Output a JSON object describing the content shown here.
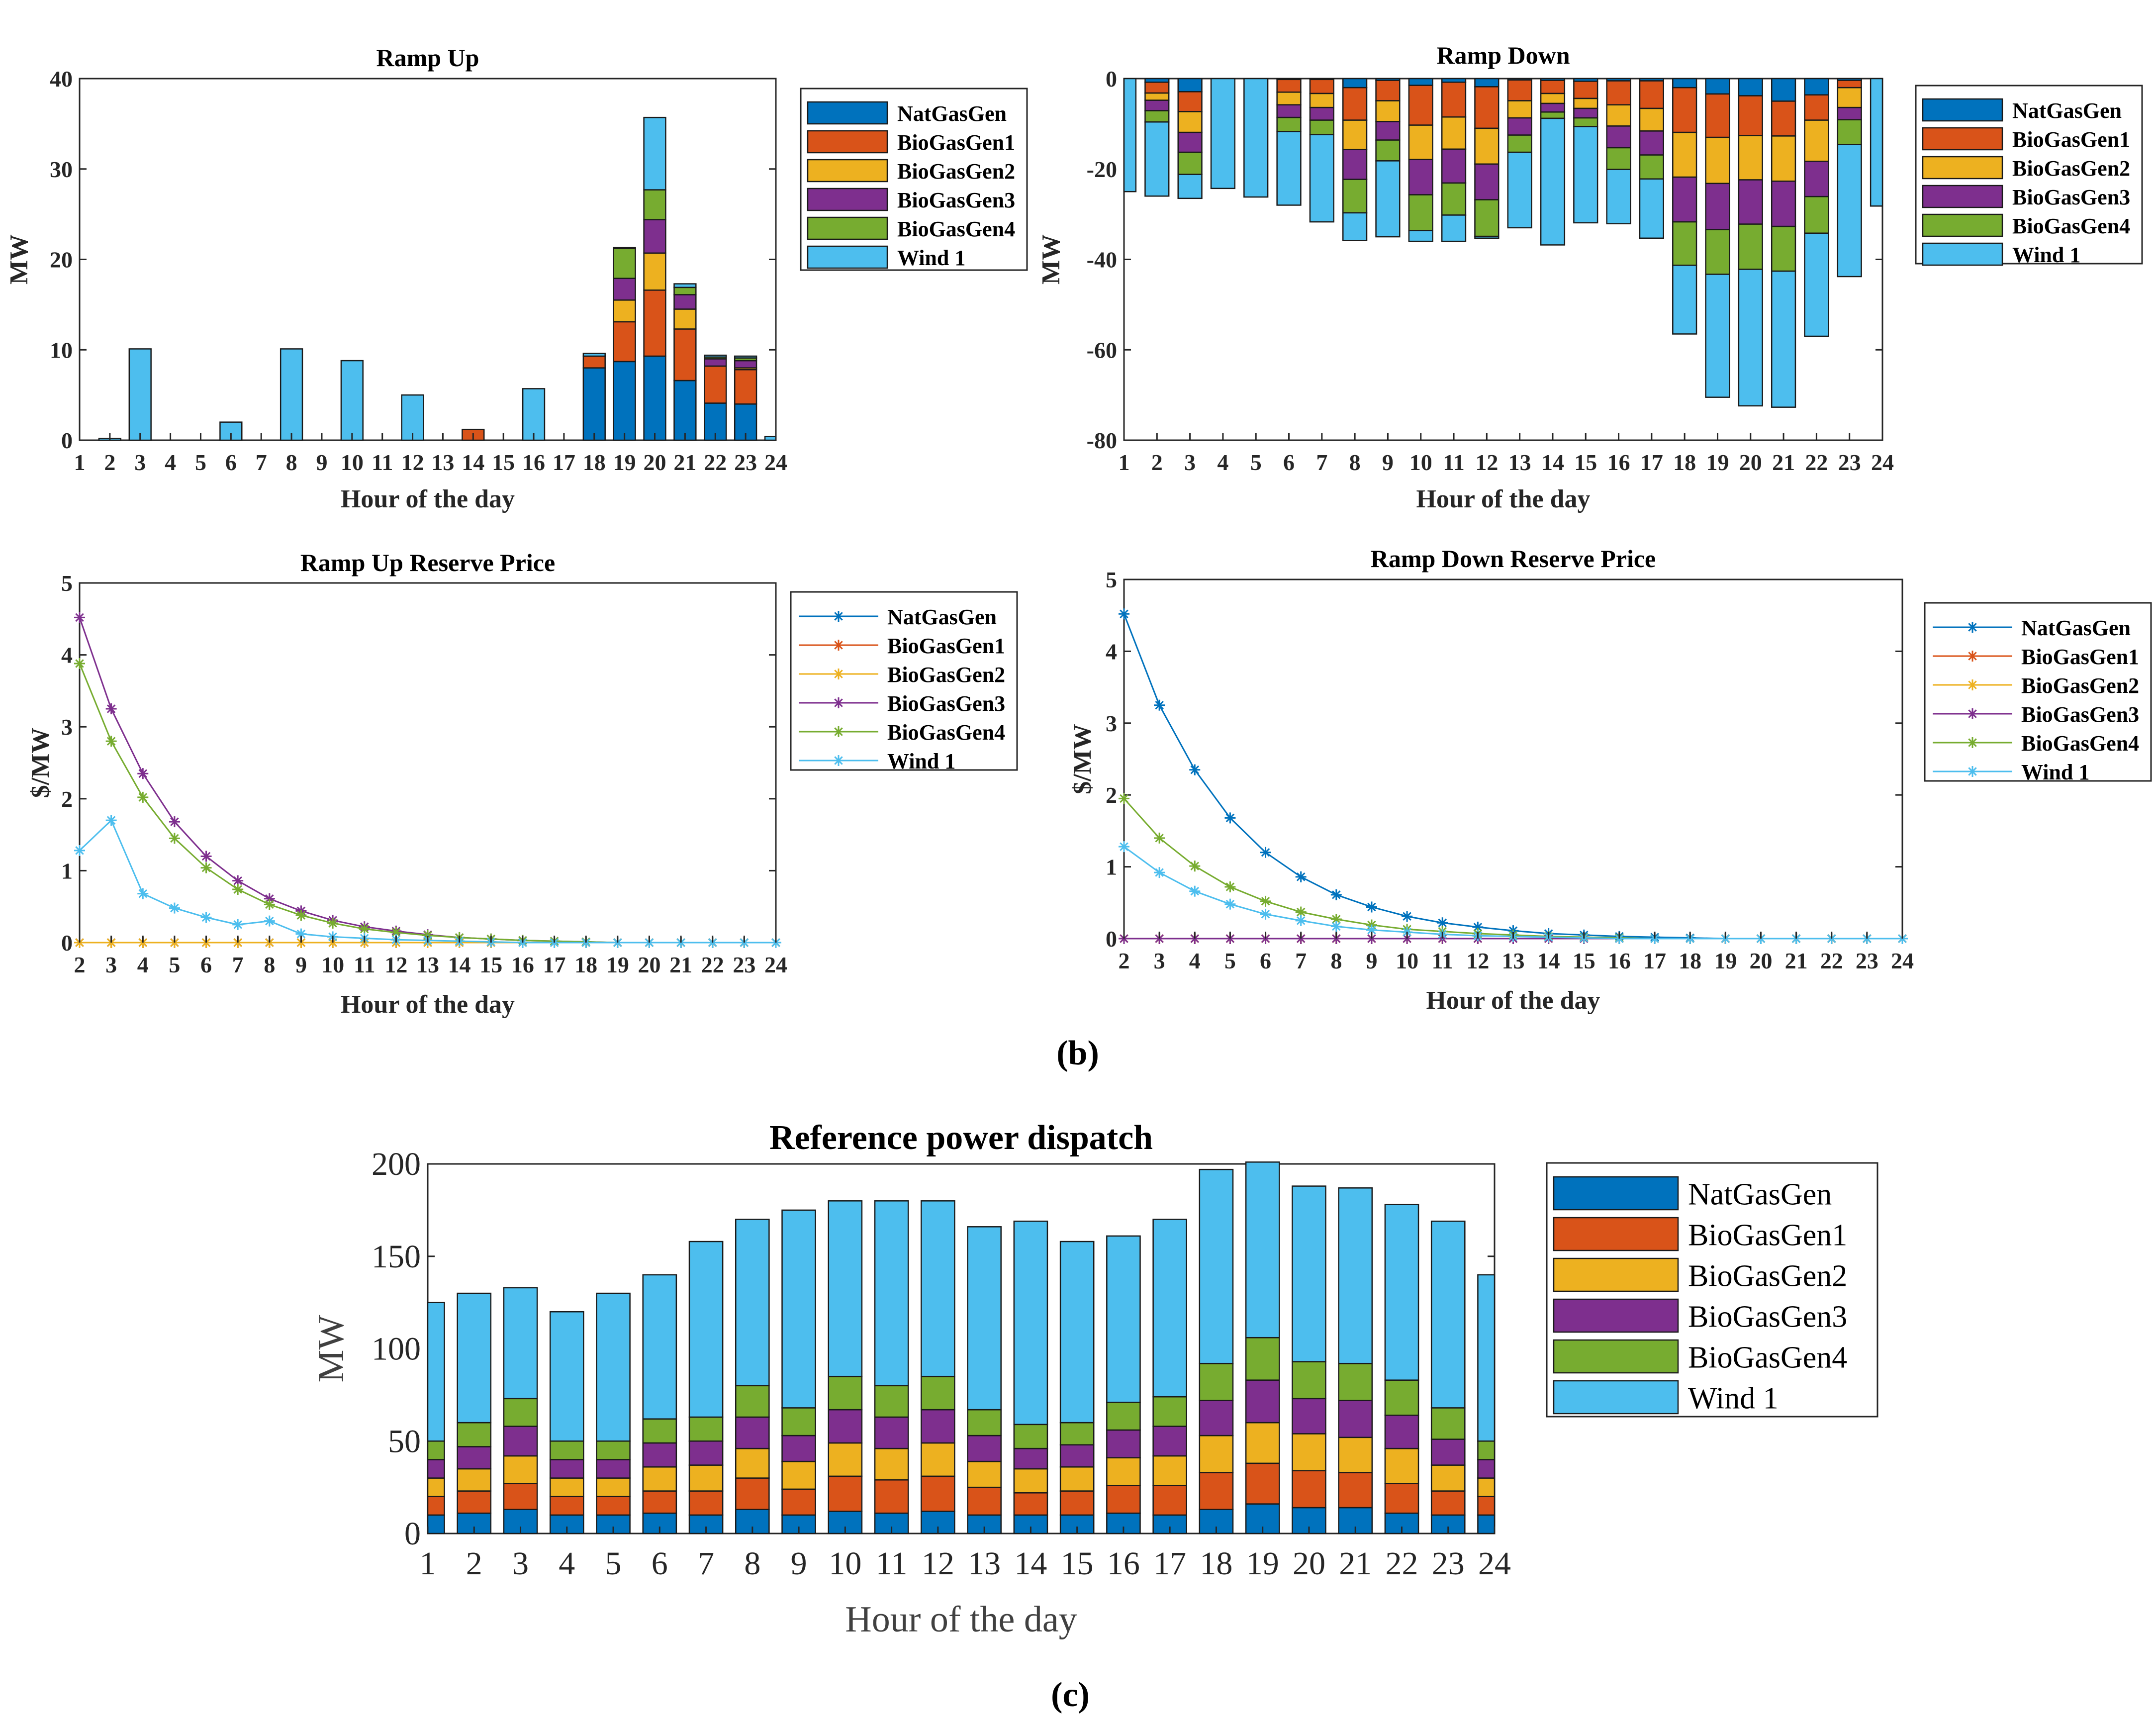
{
  "series_names": [
    "NatGasGen",
    "BioGasGen1",
    "BioGasGen2",
    "BioGasGen3",
    "BioGasGen4",
    "Wind 1"
  ],
  "colors": {
    "NatGasGen": "#0072BD",
    "BioGasGen1": "#D95319",
    "BioGasGen2": "#EDB120",
    "BioGasGen3": "#7E2F8E",
    "BioGasGen4": "#77AC30",
    "Wind 1": "#4DBEEE"
  },
  "panel_labels": {
    "b": "(b)",
    "c": "(c)"
  },
  "chart_data": [
    {
      "id": "ramp_up",
      "type": "bar",
      "stacked": true,
      "title": "Ramp Up",
      "xlabel": "Hour of the day",
      "ylabel": "MW",
      "ylim": [
        0,
        40
      ],
      "yticks": [
        0,
        10,
        20,
        30,
        40
      ],
      "categories": [
        "1",
        "2",
        "3",
        "4",
        "5",
        "6",
        "7",
        "8",
        "9",
        "10",
        "11",
        "12",
        "13",
        "14",
        "15",
        "16",
        "17",
        "18",
        "19",
        "20",
        "21",
        "22",
        "23",
        "24"
      ],
      "legend": [
        "NatGasGen",
        "BioGasGen1",
        "BioGasGen2",
        "BioGasGen3",
        "BioGasGen4",
        "Wind 1"
      ],
      "series": [
        {
          "name": "NatGasGen",
          "values": [
            0,
            0,
            0,
            0,
            0,
            0,
            0,
            0,
            0,
            0,
            0,
            0,
            0,
            0,
            0,
            0,
            0,
            8,
            8.7,
            9.3,
            6.6,
            4.1,
            4,
            0
          ]
        },
        {
          "name": "BioGasGen1",
          "values": [
            0,
            0,
            0,
            0,
            0,
            0,
            0,
            0,
            0,
            0,
            0,
            0,
            0,
            1.2,
            0,
            0,
            0,
            1.3,
            4.4,
            7.3,
            5.7,
            4.1,
            3.8,
            0
          ]
        },
        {
          "name": "BioGasGen2",
          "values": [
            0,
            0,
            0,
            0,
            0,
            0,
            0,
            0,
            0,
            0,
            0,
            0,
            0,
            0,
            0,
            0,
            0,
            0,
            2.4,
            4.1,
            2.2,
            0,
            0.2,
            0
          ]
        },
        {
          "name": "BioGasGen3",
          "values": [
            0,
            0,
            0,
            0,
            0,
            0,
            0,
            0,
            0,
            0,
            0,
            0,
            0,
            0,
            0,
            0,
            0,
            0,
            2.4,
            3.7,
            1.6,
            0.8,
            0.8,
            0
          ]
        },
        {
          "name": "BioGasGen4",
          "values": [
            0,
            0,
            0,
            0,
            0,
            0,
            0,
            0,
            0,
            0,
            0,
            0,
            0,
            0,
            0,
            0,
            0,
            0,
            3.3,
            3.3,
            0.8,
            0.2,
            0.3,
            0
          ]
        },
        {
          "name": "Wind 1",
          "values": [
            0,
            0.2,
            10.1,
            0,
            0,
            2,
            0,
            10.1,
            0,
            8.8,
            0,
            5,
            0,
            0,
            0,
            5.7,
            0,
            0.3,
            0.1,
            8,
            0.4,
            0.2,
            0.2,
            0.4
          ]
        }
      ]
    },
    {
      "id": "ramp_down",
      "type": "bar",
      "stacked": true,
      "title": "Ramp Down",
      "xlabel": "Hour of the day",
      "ylabel": "MW",
      "ylim": [
        -80,
        0
      ],
      "yticks": [
        -80,
        -60,
        -40,
        -20,
        0
      ],
      "categories": [
        "1",
        "2",
        "3",
        "4",
        "5",
        "6",
        "7",
        "8",
        "9",
        "10",
        "11",
        "12",
        "13",
        "14",
        "15",
        "16",
        "17",
        "18",
        "19",
        "20",
        "21",
        "22",
        "23",
        "24"
      ],
      "legend": [
        "NatGasGen",
        "BioGasGen1",
        "BioGasGen2",
        "BioGasGen3",
        "BioGasGen4",
        "Wind 1"
      ],
      "series": [
        {
          "name": "NatGasGen",
          "values": [
            0,
            -0.8,
            -2.9,
            0,
            0,
            -0.2,
            -0.2,
            -2,
            -0.4,
            -1.5,
            -0.8,
            -1.8,
            -0.3,
            -0.4,
            -0.6,
            -0.5,
            -0.5,
            -2,
            -3.4,
            -3.8,
            -5,
            -3.6,
            -0.4,
            0
          ]
        },
        {
          "name": "BioGasGen1",
          "values": [
            0,
            -2.4,
            -4.4,
            0,
            0,
            -2.8,
            -3.1,
            -7.2,
            -4.5,
            -8.8,
            -7.7,
            -9.2,
            -4.6,
            -2.9,
            -3.8,
            -5.3,
            -6.1,
            -9.9,
            -9.6,
            -8.8,
            -7.7,
            -5.6,
            -1.6,
            0
          ]
        },
        {
          "name": "BioGasGen2",
          "values": [
            0,
            -1.6,
            -4.6,
            0,
            0,
            -2.8,
            -3.1,
            -6.5,
            -4.6,
            -7.6,
            -7.1,
            -7.9,
            -3.8,
            -2.2,
            -2.2,
            -4.7,
            -5,
            -9.9,
            -10.2,
            -9.8,
            -10,
            -9.1,
            -4.4,
            0
          ]
        },
        {
          "name": "BioGasGen3",
          "values": [
            0,
            -2.3,
            -4.4,
            0,
            0,
            -2.8,
            -2.8,
            -6.6,
            -4.1,
            -7.8,
            -7.5,
            -7.9,
            -3.8,
            -1.9,
            -2.1,
            -4.8,
            -5.3,
            -9.9,
            -10.2,
            -9.8,
            -10,
            -7.8,
            -2.7,
            0
          ]
        },
        {
          "name": "BioGasGen4",
          "values": [
            0,
            -2.5,
            -4.9,
            0,
            0,
            -3.1,
            -3.2,
            -7.4,
            -4.6,
            -7.9,
            -7.1,
            -8.1,
            -3.8,
            -1.4,
            -1.9,
            -4.8,
            -5.3,
            -9.6,
            -9.9,
            -10,
            -9.9,
            -8.1,
            -5.5,
            0
          ]
        },
        {
          "name": "Wind 1",
          "values": [
            -25,
            -16.4,
            -5.3,
            -24.3,
            -26.2,
            -16.3,
            -19.3,
            -6.1,
            -16.8,
            -2.4,
            -5.8,
            -0.4,
            -16.7,
            -28,
            -21.3,
            -12,
            -13.1,
            -15.2,
            -27.2,
            -30.2,
            -30.1,
            -22.8,
            -29.2,
            -28.2
          ]
        }
      ]
    },
    {
      "id": "ramp_up_price",
      "type": "line",
      "title": "Ramp Up Reserve Price",
      "xlabel": "Hour of the day",
      "ylabel": "$/MW",
      "ylim": [
        0,
        5
      ],
      "yticks": [
        0,
        1,
        2,
        3,
        4,
        5
      ],
      "x": [
        2,
        3,
        4,
        5,
        6,
        7,
        8,
        9,
        10,
        11,
        12,
        13,
        14,
        15,
        16,
        17,
        18,
        19,
        20,
        21,
        22,
        23,
        24
      ],
      "legend": [
        "NatGasGen",
        "BioGasGen1",
        "BioGasGen2",
        "BioGasGen3",
        "BioGasGen4",
        "Wind 1"
      ],
      "series": [
        {
          "name": "NatGasGen",
          "values": [
            0,
            0,
            0,
            0,
            0,
            0,
            0,
            0,
            0,
            0,
            0,
            0,
            0,
            0,
            0,
            0,
            0,
            0,
            0,
            0,
            0,
            0,
            0
          ]
        },
        {
          "name": "BioGasGen1",
          "values": [
            0,
            0,
            0,
            0,
            0,
            0,
            0,
            0,
            0,
            0,
            0,
            0,
            0,
            0,
            0,
            0,
            0,
            0,
            0,
            0,
            0,
            0,
            0
          ]
        },
        {
          "name": "BioGasGen2",
          "values": [
            0,
            0,
            0,
            0,
            0,
            0,
            0,
            0,
            0,
            0,
            0,
            0,
            0,
            0,
            0,
            0,
            0,
            0,
            0,
            0,
            0,
            0,
            0
          ]
        },
        {
          "name": "BioGasGen3",
          "values": [
            4.52,
            3.25,
            2.35,
            1.68,
            1.2,
            0.86,
            0.61,
            0.44,
            0.31,
            0.22,
            0.16,
            0.11,
            0.07,
            0.05,
            0.03,
            0.02,
            0.01,
            0,
            0,
            0,
            0,
            0,
            0
          ]
        },
        {
          "name": "BioGasGen4",
          "values": [
            3.88,
            2.8,
            2.02,
            1.45,
            1.04,
            0.74,
            0.53,
            0.38,
            0.27,
            0.19,
            0.14,
            0.1,
            0.07,
            0.05,
            0.03,
            0.02,
            0.01,
            0,
            0,
            0,
            0,
            0,
            0
          ]
        },
        {
          "name": "Wind 1",
          "values": [
            1.28,
            1.7,
            0.68,
            0.48,
            0.35,
            0.25,
            0.3,
            0.12,
            0.08,
            0.06,
            0.04,
            0.03,
            0.02,
            0.01,
            0,
            0,
            0,
            0,
            0,
            0,
            0,
            0,
            0
          ]
        }
      ]
    },
    {
      "id": "ramp_down_price",
      "type": "line",
      "title": "Ramp Down Reserve Price",
      "xlabel": "Hour of the day",
      "ylabel": "$/MW",
      "ylim": [
        0,
        5
      ],
      "yticks": [
        0,
        1,
        2,
        3,
        4,
        5
      ],
      "x": [
        2,
        3,
        4,
        5,
        6,
        7,
        8,
        9,
        10,
        11,
        12,
        13,
        14,
        15,
        16,
        17,
        18,
        19,
        20,
        21,
        22,
        23,
        24
      ],
      "legend": [
        "NatGasGen",
        "BioGasGen1",
        "BioGasGen2",
        "BioGasGen3",
        "BioGasGen4",
        "Wind 1"
      ],
      "series": [
        {
          "name": "NatGasGen",
          "values": [
            4.52,
            3.25,
            2.35,
            1.68,
            1.2,
            0.86,
            0.61,
            0.44,
            0.31,
            0.22,
            0.16,
            0.11,
            0.07,
            0.05,
            0.03,
            0.02,
            0.01,
            0,
            0,
            0,
            0,
            0,
            0
          ]
        },
        {
          "name": "BioGasGen1",
          "values": [
            0,
            0,
            0,
            0,
            0,
            0,
            0,
            0,
            0,
            0,
            0,
            0,
            0,
            0,
            0,
            0,
            0,
            0,
            0,
            0,
            0,
            0,
            0
          ]
        },
        {
          "name": "BioGasGen2",
          "values": [
            0,
            0,
            0,
            0,
            0,
            0,
            0,
            0,
            0,
            0,
            0,
            0,
            0,
            0,
            0,
            0,
            0,
            0,
            0,
            0,
            0,
            0,
            0
          ]
        },
        {
          "name": "BioGasGen3",
          "values": [
            0,
            0,
            0,
            0,
            0,
            0,
            0,
            0,
            0,
            0,
            0,
            0,
            0,
            0,
            0,
            0,
            0,
            0,
            0,
            0,
            0,
            0,
            0
          ]
        },
        {
          "name": "BioGasGen4",
          "values": [
            1.95,
            1.4,
            1.01,
            0.72,
            0.52,
            0.37,
            0.27,
            0.19,
            0.13,
            0.1,
            0.07,
            0.05,
            0.03,
            0.02,
            0.01,
            0,
            0,
            0,
            0,
            0,
            0,
            0,
            0
          ]
        },
        {
          "name": "Wind 1",
          "values": [
            1.28,
            0.92,
            0.66,
            0.48,
            0.34,
            0.25,
            0.17,
            0.12,
            0.09,
            0.06,
            0.04,
            0.03,
            0.02,
            0.01,
            0,
            0,
            0,
            0,
            0,
            0,
            0,
            0,
            0
          ]
        }
      ]
    },
    {
      "id": "reference_dispatch",
      "type": "bar",
      "stacked": true,
      "title": "Reference power dispatch",
      "xlabel": "Hour of the day",
      "ylabel": "MW",
      "ylim": [
        0,
        200
      ],
      "yticks": [
        0,
        50,
        100,
        150,
        200
      ],
      "categories": [
        "1",
        "2",
        "3",
        "4",
        "5",
        "6",
        "7",
        "8",
        "9",
        "10",
        "11",
        "12",
        "13",
        "14",
        "15",
        "16",
        "17",
        "18",
        "19",
        "20",
        "21",
        "22",
        "23",
        "24"
      ],
      "legend": [
        "NatGasGen",
        "BioGasGen1",
        "BioGasGen2",
        "BioGasGen3",
        "BioGasGen4",
        "Wind 1"
      ],
      "series": [
        {
          "name": "NatGasGen",
          "values": [
            10,
            11,
            13,
            10,
            10,
            11,
            10,
            13,
            10,
            12,
            11,
            12,
            10,
            10,
            10,
            11,
            10,
            13,
            16,
            14,
            14,
            11,
            10,
            10
          ]
        },
        {
          "name": "BioGasGen1",
          "values": [
            10,
            12,
            14,
            10,
            10,
            12,
            13,
            17,
            14,
            19,
            18,
            19,
            15,
            12,
            13,
            15,
            16,
            20,
            22,
            20,
            19,
            16,
            13,
            10
          ]
        },
        {
          "name": "BioGasGen2",
          "values": [
            10,
            12,
            15,
            10,
            10,
            13,
            14,
            16,
            15,
            18,
            17,
            18,
            14,
            13,
            13,
            15,
            16,
            20,
            22,
            20,
            19,
            19,
            14,
            10
          ]
        },
        {
          "name": "BioGasGen3",
          "values": [
            10,
            12,
            16,
            10,
            10,
            13,
            13,
            17,
            14,
            18,
            17,
            18,
            14,
            11,
            12,
            15,
            16,
            19,
            23,
            19,
            20,
            18,
            14,
            10
          ]
        },
        {
          "name": "BioGasGen4",
          "values": [
            10,
            13,
            15,
            10,
            10,
            13,
            13,
            17,
            15,
            18,
            17,
            18,
            14,
            13,
            12,
            15,
            16,
            20,
            23,
            20,
            20,
            19,
            17,
            10
          ]
        },
        {
          "name": "Wind 1",
          "values": [
            75,
            70,
            60,
            70,
            80,
            78,
            95,
            90,
            107,
            95,
            100,
            95,
            99,
            110,
            98,
            90,
            96,
            105,
            95,
            95,
            95,
            95,
            101,
            90
          ]
        }
      ]
    }
  ]
}
